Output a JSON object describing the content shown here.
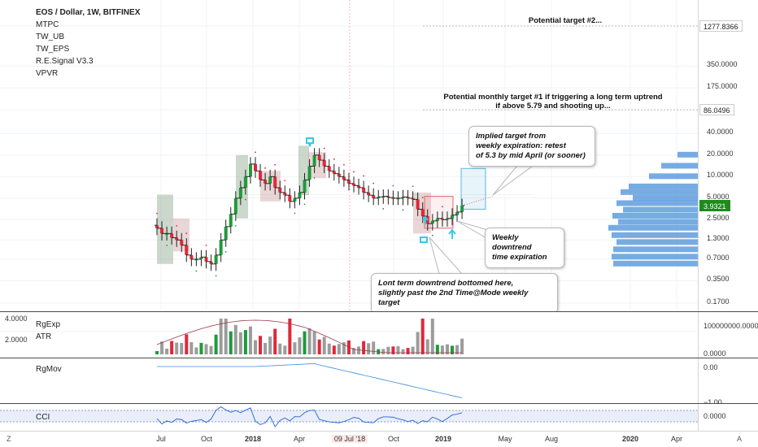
{
  "main": {
    "title": "EOS / Dollar, 1W, BITFINEX",
    "indicators": [
      "MTPC",
      "TW_UB",
      "TW_EPS",
      "R.E.Signal V3.3",
      "VPVR"
    ],
    "price_ticks": [
      "1277.8366",
      "350.0000",
      "175.0000",
      "86.0496",
      "40.0000",
      "20.0000",
      "10.0000",
      "5.0000",
      "3.9321",
      "2.5000",
      "1.3000",
      "0.7000",
      "0.3500",
      "0.1700"
    ],
    "current_price": "3.9321",
    "annotations": {
      "target2": "Potential target #2...",
      "target1_line1": "Potential monthly target #1 if triggering a long term uptrend",
      "target1_line2": "if above 5.79 and shooting up...",
      "implied": [
        "Implied target from",
        "weekly expiration: retest",
        "of 5.3 by mid April (or sooner)"
      ],
      "weekly": [
        "Weekly downtrend",
        "time expiration"
      ],
      "bottom": [
        "Lont term downtrend bottomed here,",
        "slightly past the 2nd Time@Mode weekly target"
      ]
    }
  },
  "pane2": {
    "labels": [
      "RgExp",
      "ATR"
    ],
    "left_ticks": [
      "4.0000",
      "2.0000"
    ],
    "right_ticks": [
      "100000000.0000",
      "0.0000"
    ]
  },
  "pane3": {
    "labels": [
      "RgMov"
    ],
    "right_ticks": [
      "0.00",
      "−1.00"
    ]
  },
  "pane4": {
    "labels": [
      "CCI"
    ],
    "right_ticks": [
      "0.0000"
    ]
  },
  "time_axis": {
    "labels": [
      "Jul",
      "Oct",
      "2018",
      "Apr",
      "09 Jul '18",
      "Oct",
      "2019",
      "May",
      "Aug",
      "2020",
      "Apr"
    ],
    "corner_left": "Z",
    "corner_right": "A"
  },
  "chart_data": {
    "type": "candlestick",
    "symbol": "EOS / Dollar",
    "interval": "1W",
    "exchange": "BITFINEX",
    "scale": "log",
    "ylim": [
      0.17,
      1277.8366
    ],
    "x_start": "2017-07",
    "x_end": "2019-03",
    "current_price": 3.9321,
    "horizontal_levels": [
      5.79,
      86.0496,
      1277.8366
    ],
    "candles_approx_close": [
      1.9,
      1.6,
      1.6,
      1.4,
      1.3,
      1.1,
      0.8,
      0.7,
      0.7,
      0.75,
      0.65,
      0.6,
      0.8,
      1.3,
      2.0,
      3.0,
      5.0,
      7.0,
      10.0,
      15.0,
      12.0,
      9.0,
      8.0,
      10.0,
      7.0,
      6.0,
      5.5,
      4.5,
      5.0,
      6.0,
      9.0,
      14.0,
      20.0,
      17.0,
      14.0,
      12.0,
      11.0,
      10.0,
      9.0,
      8.0,
      7.5,
      7.0,
      6.0,
      5.5,
      5.0,
      5.2,
      5.3,
      5.1,
      5.0,
      5.0,
      5.2,
      5.0,
      4.8,
      3.5,
      2.8,
      2.2,
      2.4,
      2.6,
      2.5,
      2.6,
      2.9,
      3.2,
      3.9321
    ]
  }
}
